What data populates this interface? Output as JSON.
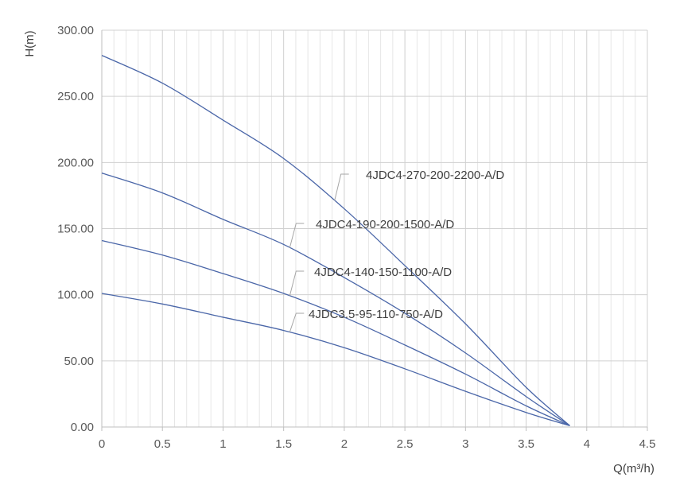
{
  "chart_data": {
    "type": "line",
    "xlabel": "Q(m³/h)",
    "ylabel": "H(m)",
    "xlim": [
      0,
      4.5
    ],
    "ylim": [
      0,
      300
    ],
    "x_ticks": [
      "0",
      "0.5",
      "1",
      "1.5",
      "2",
      "2.5",
      "3",
      "3.5",
      "4",
      "4.5"
    ],
    "y_ticks": [
      "0.00",
      "50.00",
      "100.00",
      "150.00",
      "200.00",
      "250.00",
      "300.00"
    ],
    "grid": true,
    "minor_grid_x_step": 0.1,
    "line_color": "#4a66a8",
    "series": [
      {
        "name": "4JDC4-270-200-2200-A/D",
        "x": [
          0,
          0.5,
          1,
          1.5,
          2,
          2.5,
          3,
          3.5,
          3.86
        ],
        "y": [
          281,
          260,
          232,
          203,
          165,
          122,
          78,
          30,
          1
        ]
      },
      {
        "name": "4JDC4-190-200-1500-A/D",
        "x": [
          0,
          0.5,
          1,
          1.5,
          2,
          2.5,
          3,
          3.5,
          3.86
        ],
        "y": [
          192,
          177,
          157,
          138,
          113,
          86,
          56,
          23,
          1
        ]
      },
      {
        "name": "4JDC4-140-150-1100-A/D",
        "x": [
          0,
          0.5,
          1,
          1.5,
          2,
          2.5,
          3,
          3.5,
          3.86
        ],
        "y": [
          141,
          130,
          116,
          101,
          83,
          62,
          40,
          16,
          1
        ]
      },
      {
        "name": "4JDC3.5-95-110-750-A/D",
        "x": [
          0,
          0.5,
          1,
          1.5,
          2,
          2.5,
          3,
          3.5,
          3.86
        ],
        "y": [
          101,
          93,
          83,
          73,
          60,
          44,
          27,
          11,
          1
        ]
      }
    ],
    "annotations": [
      {
        "text": "4JDC4-270-200-2200-A/D",
        "series": 0,
        "at_x": 1.92
      },
      {
        "text": "4JDC4-190-200-1500-A/D",
        "series": 1,
        "at_x": 1.55
      },
      {
        "text": "4JDC4-140-150-1100-A/D",
        "series": 2,
        "at_x": 1.55
      },
      {
        "text": "4JDC3.5-95-110-750-A/D",
        "series": 3,
        "at_x": 1.55
      }
    ]
  }
}
